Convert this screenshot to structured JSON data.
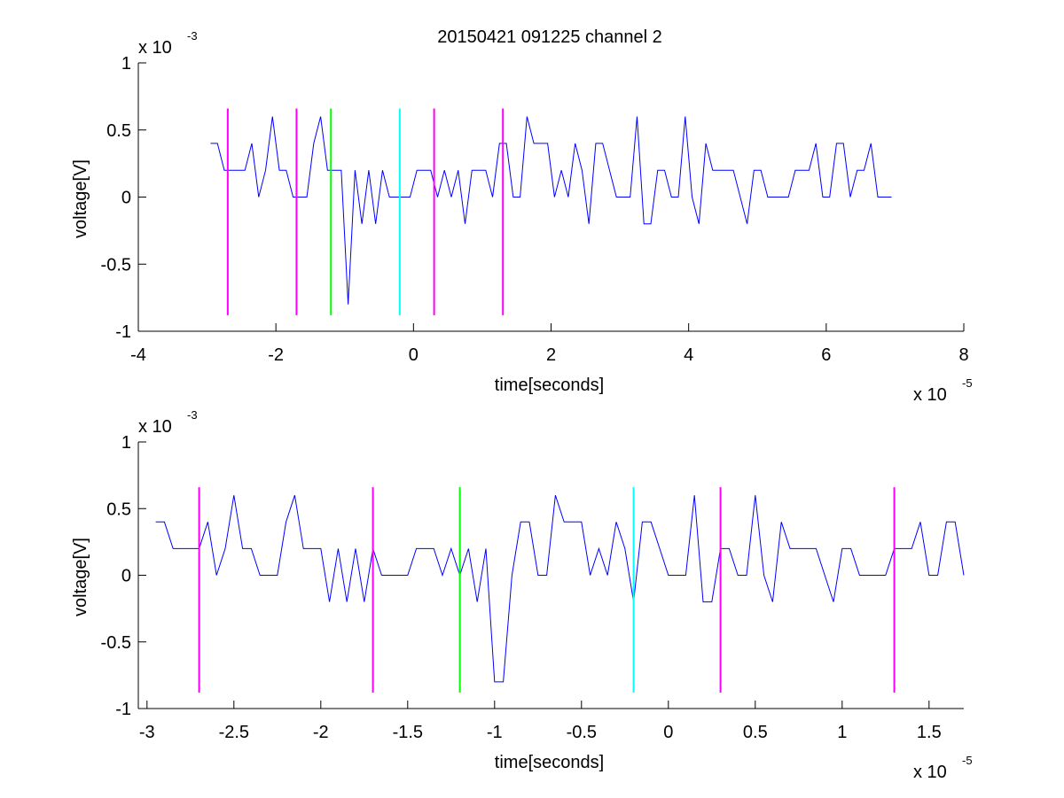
{
  "title": "20150421 091225 channel 2",
  "colors": {
    "background": "#ffffff",
    "axes": "#000000",
    "trace": "#0000ff",
    "magenta": "#ff00ff",
    "green": "#00ff00",
    "cyan": "#00ffff"
  },
  "chart_data": [
    {
      "type": "line",
      "title": "20150421 091225 channel 2",
      "xlabel": "time[seconds]",
      "ylabel": "voltage[V]",
      "x_multiplier": {
        "base": "x 10",
        "exponent": "-5"
      },
      "y_multiplier": {
        "base": "x 10",
        "exponent": "-3"
      },
      "xlim": [
        -4,
        8
      ],
      "ylim": [
        -1,
        1
      ],
      "x_ticks": [
        -4,
        -2,
        0,
        2,
        4,
        6,
        8
      ],
      "x_tick_labels": [
        "-4",
        "-2",
        "0",
        "2",
        "4",
        "6",
        "8"
      ],
      "y_ticks": [
        -1,
        -0.5,
        0,
        0.5,
        1
      ],
      "y_tick_labels": [
        "-1",
        "-0.5",
        "0",
        "0.5",
        "1"
      ],
      "grid": false,
      "trace_x_range": [
        -2.95,
        7.0
      ],
      "trace_levels": [
        -0.2,
        0,
        0.2,
        0.4,
        0.6
      ],
      "spike": {
        "x": -0.98,
        "y": -0.8
      },
      "markers": [
        {
          "x": -2.7,
          "color": "magenta",
          "y_range": [
            -0.88,
            0.66
          ]
        },
        {
          "x": -1.7,
          "color": "magenta",
          "y_range": [
            -0.88,
            0.66
          ]
        },
        {
          "x": -1.2,
          "color": "green",
          "y_range": [
            -0.88,
            0.66
          ]
        },
        {
          "x": -0.2,
          "color": "cyan",
          "y_range": [
            -0.88,
            0.66
          ]
        },
        {
          "x": 0.3,
          "color": "magenta",
          "y_range": [
            -0.88,
            0.66
          ]
        },
        {
          "x": 1.3,
          "color": "magenta",
          "y_range": [
            -0.88,
            0.66
          ]
        }
      ]
    },
    {
      "type": "line",
      "xlabel": "time[seconds]",
      "ylabel": "voltage[V]",
      "x_multiplier": {
        "base": "x 10",
        "exponent": "-5"
      },
      "y_multiplier": {
        "base": "x 10",
        "exponent": "-3"
      },
      "xlim": [
        -3.05,
        1.7
      ],
      "ylim": [
        -1,
        1
      ],
      "x_ticks": [
        -3,
        -2.5,
        -2,
        -1.5,
        -1,
        -0.5,
        0,
        0.5,
        1,
        1.5
      ],
      "x_tick_labels": [
        "-3",
        "-2.5",
        "-2",
        "-1.5",
        "-1",
        "-0.5",
        "0",
        "0.5",
        "1",
        "1.5"
      ],
      "y_ticks": [
        -1,
        -0.5,
        0,
        0.5,
        1
      ],
      "y_tick_labels": [
        "-1",
        "-0.5",
        "0",
        "0.5",
        "1"
      ],
      "grid": false,
      "trace_x_range": [
        -2.95,
        1.7
      ],
      "trace_levels": [
        -0.2,
        0,
        0.2,
        0.4,
        0.6
      ],
      "spike": {
        "x": -0.98,
        "y": -0.8
      },
      "markers": [
        {
          "x": -2.7,
          "color": "magenta",
          "y_range": [
            -0.88,
            0.66
          ]
        },
        {
          "x": -1.7,
          "color": "magenta",
          "y_range": [
            -0.88,
            0.66
          ]
        },
        {
          "x": -1.2,
          "color": "green",
          "y_range": [
            -0.88,
            0.66
          ]
        },
        {
          "x": -0.2,
          "color": "cyan",
          "y_range": [
            -0.88,
            0.66
          ]
        },
        {
          "x": 0.3,
          "color": "magenta",
          "y_range": [
            -0.88,
            0.66
          ]
        },
        {
          "x": 1.3,
          "color": "magenta",
          "y_range": [
            -0.88,
            0.66
          ]
        }
      ]
    }
  ]
}
